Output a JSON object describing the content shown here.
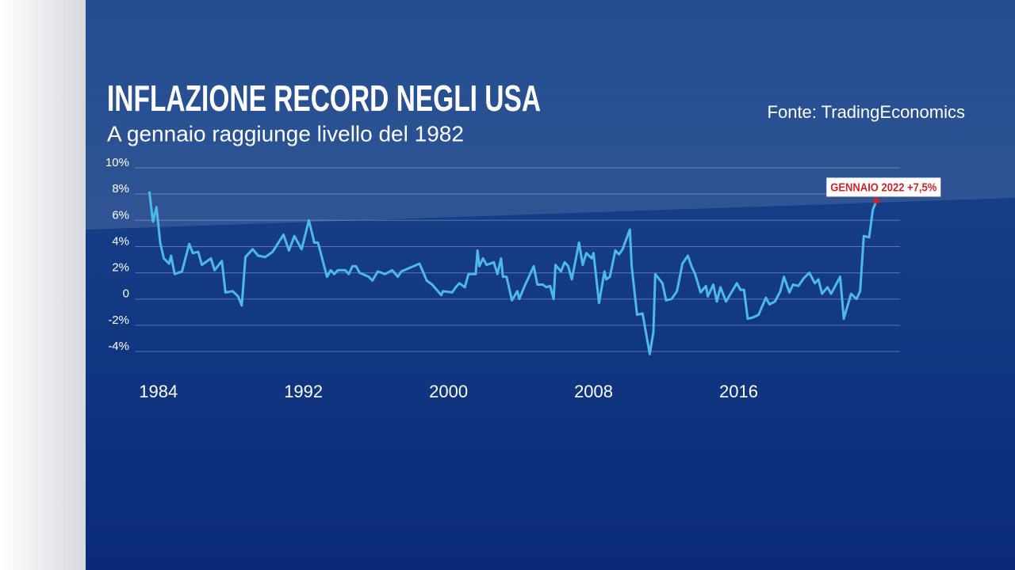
{
  "chart_data": {
    "type": "line",
    "title": "INFLAZIONE RECORD NEGLI USA",
    "subtitle": "A gennaio raggiunge livello del 1982",
    "source": "Fonte: TradingEconomics",
    "annotation": "GENNAIO 2022 +7,5%",
    "color": "#4cb9ea",
    "annotation_color": "#c8262e",
    "grid": true,
    "xlim": [
      1982.7,
      2024.9
    ],
    "xticks": [
      1984,
      1992,
      2000,
      2008,
      2016
    ],
    "ylim": [
      -4.3,
      10
    ],
    "yticks": [
      {
        "value": 10,
        "label": "10%"
      },
      {
        "value": 8,
        "label": "8%"
      },
      {
        "value": 6,
        "label": "6%"
      },
      {
        "value": 4,
        "label": "4%"
      },
      {
        "value": 2,
        "label": "2%"
      },
      0,
      {
        "value": -2,
        "label": "-2%"
      },
      {
        "value": -4,
        "label": "-4%"
      }
    ],
    "x": [
      1983.5,
      1983.7,
      1983.9,
      1984.1,
      1984.3,
      1984.6,
      1984.7,
      1984.9,
      1985.3,
      1985.7,
      1985.9,
      1986.2,
      1986.4,
      1986.9,
      1987.1,
      1987.5,
      1987.7,
      1988.1,
      1988.4,
      1988.6,
      1988.8,
      1989.2,
      1989.5,
      1989.9,
      1990.3,
      1990.9,
      1991.2,
      1991.5,
      1991.9,
      1992.3,
      1992.6,
      1992.8,
      1993.3,
      1993.5,
      1993.7,
      1993.9,
      1994.3,
      1994.5,
      1994.7,
      1994.9,
      1995.1,
      1995.6,
      1995.8,
      1996.1,
      1996.5,
      1996.9,
      1997.2,
      1997.4,
      1998.4,
      1998.8,
      1999.1,
      1999.6,
      1999.7,
      2000.2,
      2000.4,
      2000.6,
      2000.9,
      2001.1,
      2001.5,
      2001.6,
      2001.7,
      2001.9,
      2002.1,
      2002.5,
      2002.7,
      2002.9,
      2003.0,
      2003.2,
      2003.5,
      2003.8,
      2003.9,
      2004.2,
      2004.7,
      2004.9,
      2005.2,
      2005.4,
      2005.6,
      2005.8,
      2005.9,
      2006.2,
      2006.4,
      2006.6,
      2006.8,
      2007.2,
      2007.4,
      2007.6,
      2007.9,
      2008.0,
      2008.3,
      2008.6,
      2008.7,
      2008.9,
      2009.2,
      2009.4,
      2009.6,
      2010.0,
      2010.1,
      2010.4,
      2010.7,
      2011.1,
      2011.3,
      2011.4,
      2011.8,
      2012.0,
      2012.3,
      2012.6,
      2012.9,
      2013.2,
      2013.4,
      2013.6,
      2013.9,
      2014.2,
      2014.3,
      2014.6,
      2014.8,
      2015.0,
      2015.3,
      2015.6,
      2015.9,
      2016.1,
      2016.3,
      2016.5,
      2016.8,
      2017.1,
      2017.5,
      2017.7,
      2018.0,
      2018.3,
      2018.5,
      2018.8,
      2019.0,
      2019.3,
      2019.6,
      2019.9,
      2020.2,
      2020.4,
      2020.6,
      2020.9,
      2021.1,
      2021.6,
      2021.8,
      2022.2,
      2022.5,
      2022.7,
      2022.9,
      2023.2,
      2023.4,
      2023.6
    ],
    "values": [
      8.2,
      5.9,
      7.0,
      4.3,
      3.1,
      2.7,
      3.3,
      1.9,
      2.1,
      4.2,
      3.5,
      3.6,
      2.6,
      3.1,
      2.2,
      2.9,
      0.5,
      0.6,
      0.2,
      -0.5,
      3.2,
      3.8,
      3.3,
      3.2,
      3.6,
      4.9,
      3.7,
      4.8,
      3.8,
      6.0,
      4.3,
      4.3,
      1.7,
      2.2,
      1.9,
      2.2,
      2.2,
      1.9,
      2.5,
      2.5,
      2.0,
      1.7,
      1.4,
      2.1,
      1.9,
      2.2,
      1.7,
      2.1,
      2.7,
      1.4,
      1.1,
      0.3,
      0.6,
      0.5,
      0.9,
      1.2,
      0.9,
      1.9,
      1.9,
      3.7,
      2.5,
      3.1,
      2.6,
      2.8,
      1.9,
      3.1,
      1.7,
      1.7,
      -0.1,
      0.6,
      0.0,
      1.0,
      2.5,
      1.1,
      1.1,
      0.9,
      1.0,
      0.0,
      2.6,
      2.1,
      2.8,
      2.5,
      1.5,
      4.3,
      2.6,
      3.5,
      3.1,
      3.5,
      -0.3,
      2.1,
      1.5,
      1.7,
      3.7,
      3.4,
      3.8,
      5.3,
      2.5,
      -1.2,
      -1.1,
      -4.2,
      -2.5,
      1.9,
      1.2,
      -0.1,
      0.0,
      0.6,
      2.7,
      3.3,
      2.5,
      1.9,
      0.5,
      1.0,
      0.2,
      1.1,
      -0.2,
      0.9,
      -0.2,
      0.5,
      1.2,
      0.7,
      0.7,
      -1.5,
      -1.4,
      -1.2,
      0.1,
      -0.4,
      -0.2,
      0.6,
      1.7,
      0.5,
      1.1,
      1.0,
      1.6,
      2.0,
      1.2,
      1.5,
      0.4,
      0.9,
      0.4,
      1.7,
      -1.5,
      0.4,
      0.0,
      0.6,
      4.8,
      4.7,
      6.8,
      7.5
    ]
  }
}
